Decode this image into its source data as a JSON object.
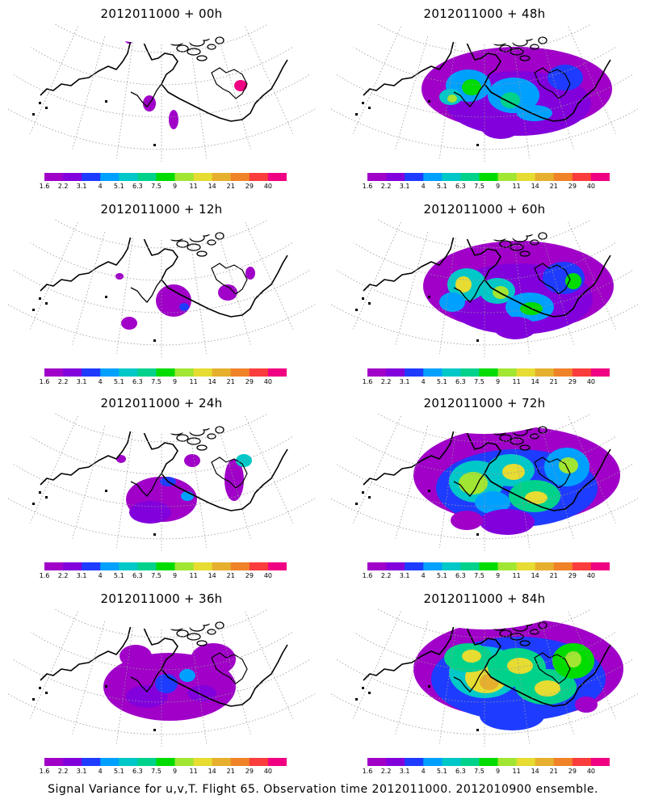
{
  "panels": [
    {
      "title": "2012011000 + 00h",
      "lead_hours": 0
    },
    {
      "title": "2012011000 + 48h",
      "lead_hours": 48
    },
    {
      "title": "2012011000 + 12h",
      "lead_hours": 12
    },
    {
      "title": "2012011000 + 60h",
      "lead_hours": 60
    },
    {
      "title": "2012011000 + 24h",
      "lead_hours": 24
    },
    {
      "title": "2012011000 + 72h",
      "lead_hours": 72
    },
    {
      "title": "2012011000 + 36h",
      "lead_hours": 36
    },
    {
      "title": "2012011000 + 84h",
      "lead_hours": 84
    }
  ],
  "colorbar": {
    "labels": [
      "1.6",
      "2.2",
      "3.1",
      "4",
      "5.1",
      "6.3",
      "7.5",
      "9",
      "11",
      "14",
      "21",
      "29",
      "40"
    ],
    "colors": [
      "#a000c8",
      "#8200dc",
      "#1e3cff",
      "#00a0ff",
      "#00c8c8",
      "#00d28c",
      "#00dc00",
      "#a0e632",
      "#e6dc32",
      "#e6af2d",
      "#f08228",
      "#fa3c3c",
      "#f00082"
    ]
  },
  "footer": "Signal Variance for u,v,T. Flight 65. Observation time 2012011000. 2012010900 ensemble."
}
